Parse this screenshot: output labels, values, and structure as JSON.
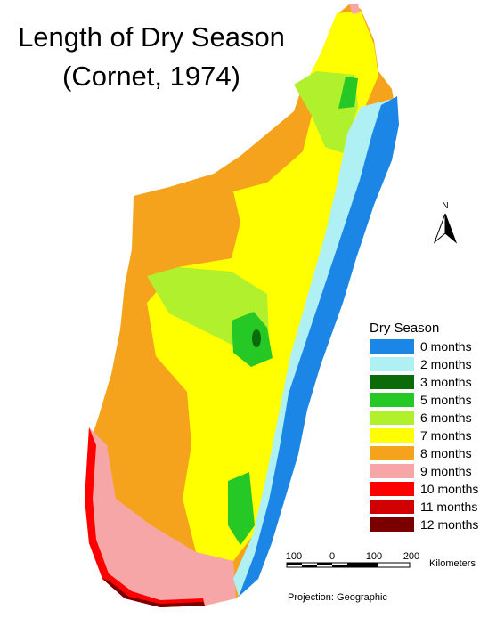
{
  "title": [
    "Length of Dry Season",
    "(Cornet, 1974)"
  ],
  "legend": {
    "title": "Dry Season",
    "items": [
      {
        "label": "0 months",
        "color": "#1b86e6"
      },
      {
        "label": "2 months",
        "color": "#aef0f4"
      },
      {
        "label": "3 months",
        "color": "#0b6b0b"
      },
      {
        "label": "5 months",
        "color": "#25c825"
      },
      {
        "label": "6 months",
        "color": "#b0f02c"
      },
      {
        "label": "7 months",
        "color": "#ffff00"
      },
      {
        "label": "8 months",
        "color": "#f5a31c"
      },
      {
        "label": "9 months",
        "color": "#f6a6a6"
      },
      {
        "label": "10 months",
        "color": "#ff0000"
      },
      {
        "label": "11 months",
        "color": "#d20000"
      },
      {
        "label": "12 months",
        "color": "#7a0000"
      }
    ]
  },
  "north_arrow": "N",
  "scale_bar": {
    "labels": [
      "100",
      "0",
      "100",
      "200"
    ],
    "unit": "Kilometers"
  },
  "projection": "Projection: Geographic"
}
